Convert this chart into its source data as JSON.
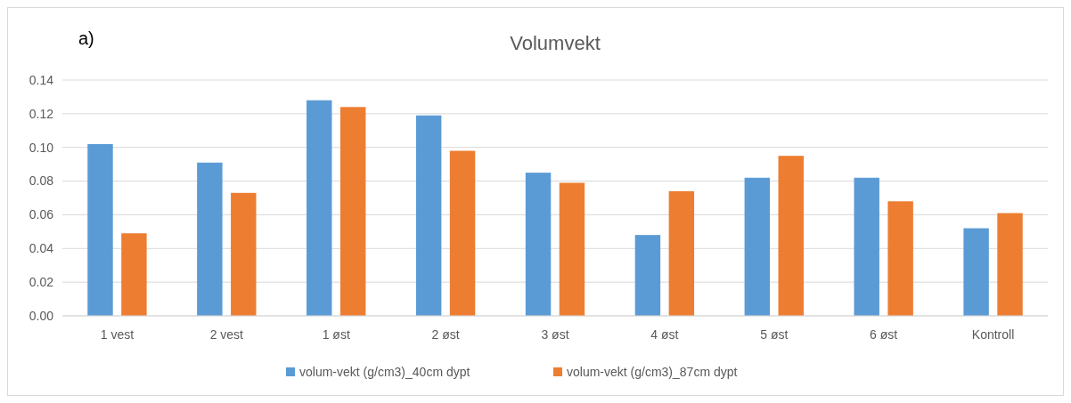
{
  "chart_data": {
    "type": "bar",
    "title": "Volumvekt",
    "annotations": [
      "a)"
    ],
    "categories": [
      "1 vest",
      "2 vest",
      "1 øst",
      "2 øst",
      "3 øst",
      "4 øst",
      "5 øst",
      "6 øst",
      "Kontroll"
    ],
    "series": [
      {
        "name": "volum-vekt (g/cm3)_40cm dypt",
        "color": "#5b9bd5",
        "values": [
          0.102,
          0.091,
          0.128,
          0.119,
          0.085,
          0.048,
          0.082,
          0.082,
          0.052
        ]
      },
      {
        "name": "volum-vekt (g/cm3)_87cm dypt",
        "color": "#ed7d31",
        "values": [
          0.049,
          0.073,
          0.124,
          0.098,
          0.079,
          0.074,
          0.095,
          0.068,
          0.061
        ]
      }
    ],
    "ylim": [
      0,
      0.14
    ],
    "yticks": [
      {
        "value": 0,
        "label": "0.00"
      },
      {
        "value": 0.02,
        "label": "0.02"
      },
      {
        "value": 0.04,
        "label": "0.04"
      },
      {
        "value": 0.06,
        "label": "0.06"
      },
      {
        "value": 0.08,
        "label": "0.08"
      },
      {
        "value": 0.1,
        "label": "0.10"
      },
      {
        "value": 0.12,
        "label": "0.12"
      },
      {
        "value": 0.14,
        "label": "0.14"
      }
    ],
    "grid": "y",
    "legend": "bottom"
  }
}
